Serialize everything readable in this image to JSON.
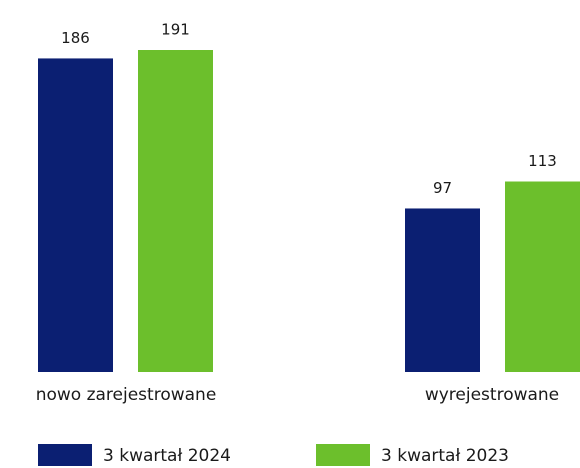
{
  "chart_data": {
    "type": "bar",
    "categories": [
      "nowo zarejestrowane",
      "wyrejestrowane"
    ],
    "series": [
      {
        "name": "3 kwartał 2024",
        "color": "#0b1f72",
        "values": [
          186,
          97
        ]
      },
      {
        "name": "3 kwartał 2023",
        "color": "#6cbf2c",
        "values": [
          191,
          113
        ]
      }
    ],
    "legend": "bottom"
  }
}
